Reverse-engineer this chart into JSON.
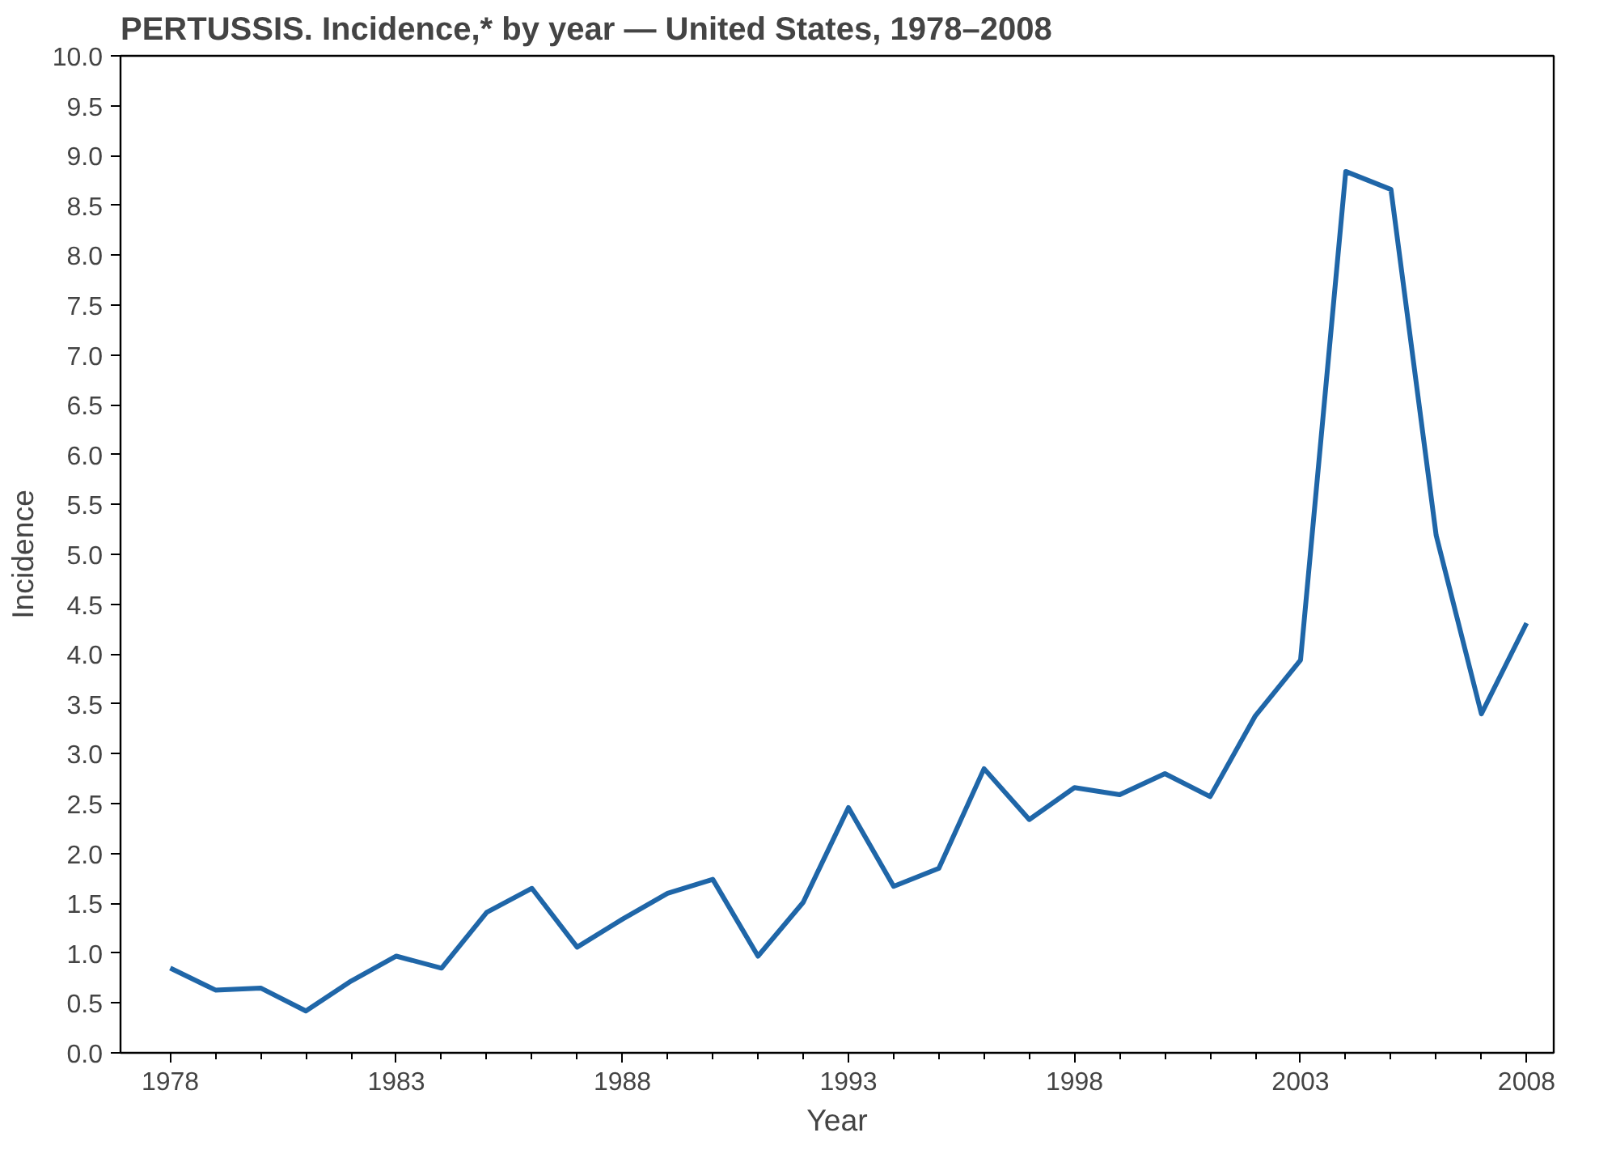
{
  "chart_data": {
    "type": "line",
    "title": "PERTUSSIS. Incidence,* by year — United States, 1978–2008",
    "xlabel": "Year",
    "ylabel": "Incidence",
    "x": [
      1978,
      1979,
      1980,
      1981,
      1982,
      1983,
      1984,
      1985,
      1986,
      1987,
      1988,
      1989,
      1990,
      1991,
      1992,
      1993,
      1994,
      1995,
      1996,
      1997,
      1998,
      1999,
      2000,
      2001,
      2002,
      2003,
      2004,
      2005,
      2006,
      2007,
      2008
    ],
    "series": [
      {
        "color": "#1f66a8",
        "values": [
          0.85,
          0.63,
          0.65,
          0.42,
          0.72,
          0.97,
          0.85,
          1.41,
          1.65,
          1.06,
          1.34,
          1.6,
          1.74,
          0.97,
          1.51,
          2.46,
          1.67,
          1.85,
          2.85,
          2.34,
          2.66,
          2.59,
          2.8,
          2.57,
          3.38,
          3.94,
          8.84,
          8.66,
          5.19,
          3.4,
          4.31
        ]
      }
    ],
    "xlim": [
      1976.9,
      2008.6
    ],
    "xticks": [
      1978,
      1983,
      1988,
      1993,
      1998,
      2003,
      2008
    ],
    "ylim": [
      0,
      10
    ],
    "yticks": [
      {
        "value": 0,
        "label": "0.0"
      },
      0.5,
      {
        "value": 1,
        "label": "1.0"
      },
      1.5,
      {
        "value": 2,
        "label": "2.0"
      },
      2.5,
      {
        "value": 3,
        "label": "3.0"
      },
      3.5,
      {
        "value": 4,
        "label": "4.0"
      },
      4.5,
      {
        "value": 5,
        "label": "5.0"
      },
      5.5,
      {
        "value": 6,
        "label": "6.0"
      },
      6.5,
      {
        "value": 7,
        "label": "7.0"
      },
      7.5,
      {
        "value": 8,
        "label": "8.0"
      },
      8.5,
      {
        "value": 9,
        "label": "9.0"
      },
      9.5,
      {
        "value": 10,
        "label": "10.0"
      }
    ],
    "grid": false,
    "marker": "none",
    "line_style": "solid"
  }
}
